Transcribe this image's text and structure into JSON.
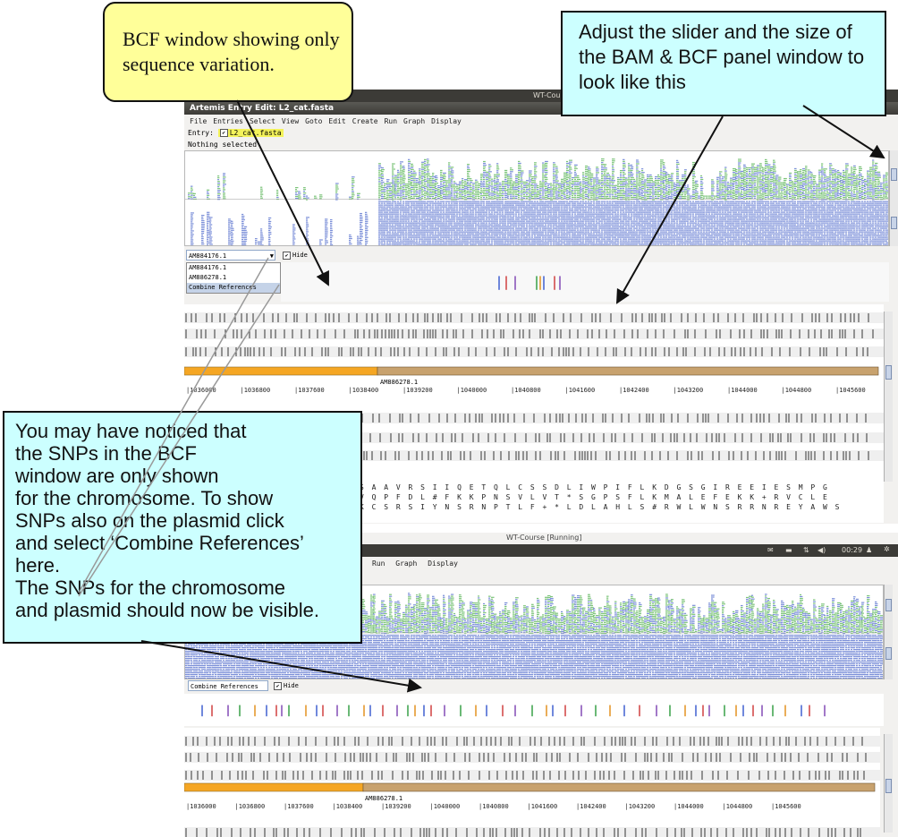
{
  "callouts": {
    "bcf_window": "BCF window showing only sequence variation.",
    "adjust_slider": "Adjust the slider and the size of the BAM & BCF panel window to look like this",
    "snps_note": "You may have noticed that\nthe SNPs in the BCF\nwindow are only shown\nfor the chromosome. To show\nSNPs also on the plasmid click\nand select ‘Combine References’\nhere.\nThe SNPs for the chromosome\nand plasmid should now be visible."
  },
  "top_window": {
    "vm_title": "WT-Course [Running]",
    "title": "Artemis Entry Edit: L2_cat.fasta",
    "menu": [
      "File",
      "Entries",
      "Select",
      "View",
      "Goto",
      "Edit",
      "Create",
      "Run",
      "Graph",
      "Display"
    ],
    "entry_label": "Entry:",
    "entry_name": "L2_cat.fasta",
    "status": "Nothing selected",
    "reference_combo_value": "AM884176.1",
    "hide_label": "Hide",
    "reference_options": [
      "AM884176.1",
      "AM886278.1",
      "Combine References"
    ],
    "contig_label": "AM886278.1",
    "ruler": [
      "1036000",
      "1036800",
      "1037600",
      "1038400",
      "1039200",
      "1040000",
      "1040800",
      "1041600",
      "1042400",
      "1043200",
      "1044000",
      "1044800",
      "1045600"
    ],
    "aa_frames": [
      "S A A V R S I I Q E T Q L C S S D L I W P I F L K D G S G I R E E I E S M P G",
      "V Q P F D L # F K K P N S V L V T * S G P S F L K M A L E F E K K + R V C L E",
      "K C S R S I Y N S R N P T L F + * L D L A H L S # R W L W N S R R N R E Y A W S"
    ]
  },
  "bottom_window": {
    "vm_title": "WT-Course [Running]",
    "clock": "00:29",
    "menu": [
      "Run",
      "Graph",
      "Display"
    ],
    "reference_combo_value": "Combine References",
    "hide_label": "Hide",
    "contig_label": "AM886278.1",
    "ruler": [
      "1036000",
      "1036800",
      "1037600",
      "1038400",
      "1039200",
      "1040000",
      "1040800",
      "1041600",
      "1042400",
      "1043200",
      "1044000",
      "1044800",
      "1045600"
    ]
  },
  "colors": {
    "callout_yellow": "#ffff99",
    "callout_cyan": "#ccffff",
    "read_blue": "#7b8fd8",
    "read_green": "#7cc47a",
    "chromosome_orange": "#f5a623",
    "plasmid_tan": "#c8a26e",
    "entry_highlight": "#f4f35a"
  }
}
